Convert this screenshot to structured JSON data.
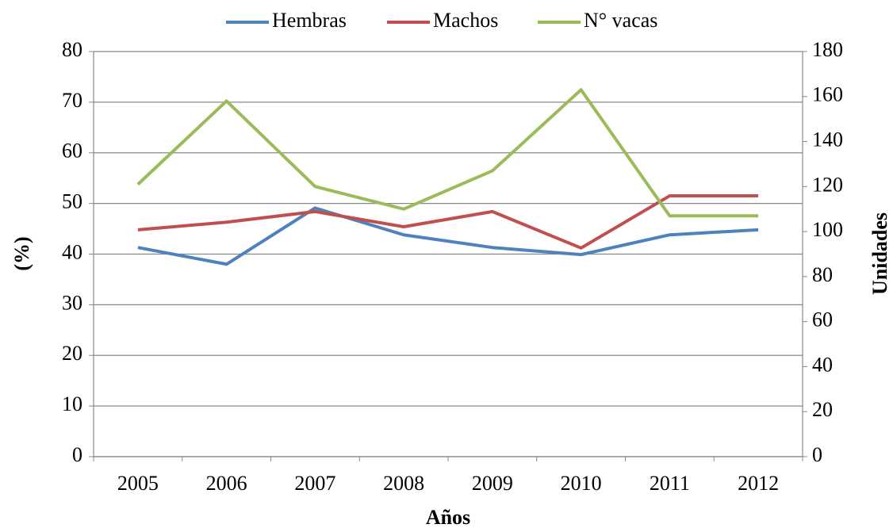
{
  "chart_data": {
    "type": "line",
    "categories": [
      "2005",
      "2006",
      "2007",
      "2008",
      "2009",
      "2010",
      "2011",
      "2012"
    ],
    "series": [
      {
        "name": "Hembras",
        "color": "#4f81bd",
        "values": [
          41.3,
          38.0,
          49.1,
          43.8,
          41.3,
          39.9,
          43.8,
          44.8
        ]
      },
      {
        "name": "Machos",
        "color": "#c0504d",
        "values": [
          44.8,
          46.3,
          48.4,
          45.4,
          48.4,
          41.2,
          51.5,
          51.5
        ]
      },
      {
        "name": "N° vacas",
        "color": "#9bbb59",
        "axis": "y2",
        "values": [
          121,
          158,
          120,
          110,
          127,
          163,
          107,
          107
        ]
      }
    ],
    "xlabel": "Años",
    "ylabel": "(%)",
    "y2label": "Unidades",
    "ylim": [
      0,
      80
    ],
    "yticks": [
      0,
      10,
      20,
      30,
      40,
      50,
      60,
      70,
      80
    ],
    "y2lim": [
      0,
      180
    ],
    "y2ticks": [
      0,
      20,
      40,
      60,
      80,
      100,
      120,
      140,
      160,
      180
    ],
    "grid": true,
    "legend": "top"
  }
}
